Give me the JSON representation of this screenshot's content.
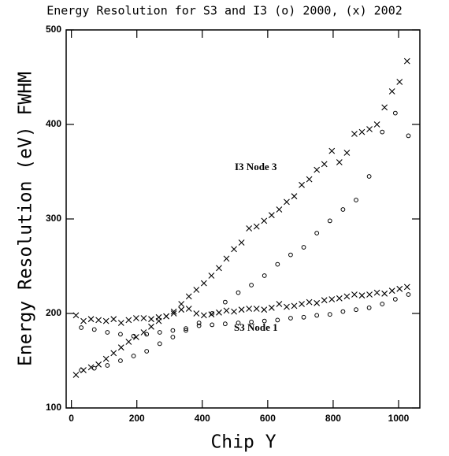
{
  "chart_data": {
    "type": "scatter",
    "title": "Energy Resolution for S3 and I3 (o) 2000, (x) 2002",
    "x_label": "Chip Y",
    "y_label": "Energy Resolution (eV) FWHM",
    "annotations": [
      "I3 Node 3",
      "S3 Node 1"
    ],
    "xlim": [
      -16,
      1065
    ],
    "ylim": [
      100,
      500
    ],
    "xticks": [
      0,
      200,
      400,
      600,
      800,
      1000
    ],
    "yticks": [
      100,
      200,
      300,
      400,
      500
    ],
    "grid": false,
    "series": [
      {
        "marker": "x",
        "color": "#000000",
        "x": [
          14,
          37,
          60,
          83,
          106,
          129,
          152,
          175,
          198,
          221,
          244,
          267,
          290,
          313,
          336,
          359,
          382,
          405,
          428,
          451,
          474,
          497,
          520,
          543,
          566,
          589,
          612,
          635,
          658,
          681,
          704,
          727,
          750,
          773,
          796,
          819,
          842,
          865,
          888,
          911,
          934,
          957,
          980,
          1003,
          1026
        ],
        "values": [
          135,
          140,
          143,
          146,
          152,
          158,
          164,
          170,
          175,
          180,
          186,
          192,
          197,
          202,
          210,
          218,
          225,
          232,
          240,
          248,
          258,
          268,
          275,
          290,
          292,
          298,
          304,
          310,
          318,
          324,
          336,
          342,
          352,
          358,
          372,
          360,
          370,
          390,
          392,
          395,
          400,
          418,
          435,
          445,
          467
        ]
      },
      {
        "marker": "x",
        "color": "#000000",
        "x": [
          14,
          37,
          60,
          83,
          106,
          129,
          152,
          175,
          198,
          221,
          244,
          267,
          290,
          313,
          336,
          359,
          382,
          405,
          428,
          451,
          474,
          497,
          520,
          543,
          566,
          589,
          612,
          635,
          658,
          681,
          704,
          727,
          750,
          773,
          796,
          819,
          842,
          865,
          888,
          911,
          934,
          957,
          980,
          1003,
          1026
        ],
        "values": [
          198,
          192,
          194,
          193,
          192,
          194,
          190,
          193,
          195,
          195,
          194,
          196,
          197,
          200,
          204,
          205,
          200,
          198,
          199,
          201,
          203,
          202,
          204,
          205,
          205,
          204,
          206,
          210,
          207,
          208,
          210,
          212,
          211,
          214,
          215,
          216,
          218,
          220,
          219,
          220,
          222,
          221,
          224,
          226,
          228
        ]
      },
      {
        "marker": "o",
        "color": "#000000",
        "x": [
          30,
          70,
          110,
          150,
          190,
          230,
          270,
          310,
          350,
          390,
          430,
          470,
          510,
          550,
          590,
          630,
          670,
          710,
          750,
          790,
          830,
          870,
          910,
          950,
          990,
          1030
        ],
        "values": [
          185,
          183,
          180,
          178,
          176,
          178,
          180,
          182,
          184,
          187,
          188,
          189,
          190,
          191,
          192,
          193,
          195,
          196,
          198,
          199,
          202,
          204,
          206,
          210,
          215,
          220
        ]
      },
      {
        "marker": "o",
        "color": "#000000",
        "x": [
          30,
          70,
          110,
          150,
          190,
          230,
          270,
          310,
          350,
          390,
          430,
          470,
          510,
          550,
          590,
          630,
          670,
          710,
          750,
          790,
          830,
          870,
          910,
          950,
          990,
          1030
        ],
        "values": [
          140,
          142,
          145,
          150,
          155,
          160,
          168,
          175,
          182,
          190,
          200,
          212,
          222,
          230,
          240,
          252,
          262,
          270,
          285,
          298,
          310,
          320,
          345,
          392,
          412,
          388
        ]
      }
    ]
  }
}
